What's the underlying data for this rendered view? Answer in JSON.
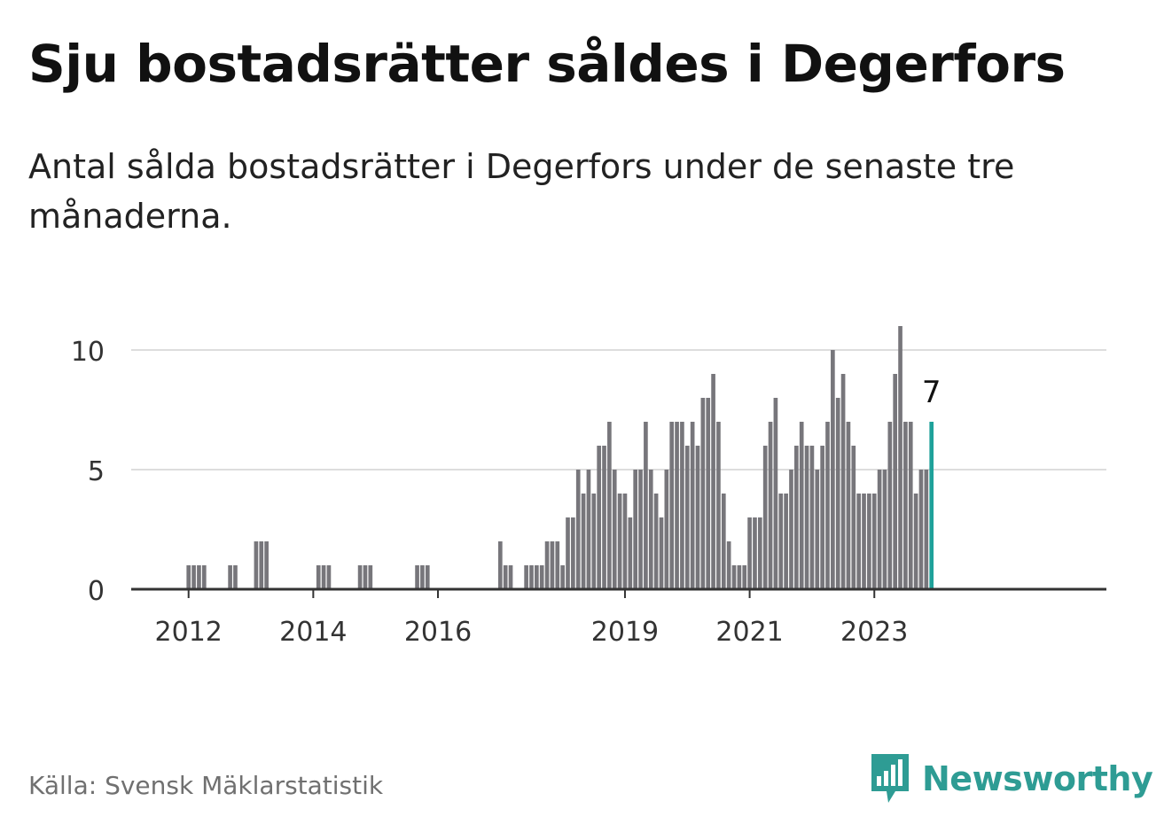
{
  "title": "Sju bostadsrätter såldes i Degerfors",
  "subtitle": "Antal sålda bostadsrätter i Degerfors under de senaste tre månaderna.",
  "source": "Källa: Svensk Mäklarstatistik",
  "brand": "Newsworthy",
  "colors": {
    "bar": "#77767b",
    "highlight": "#1fa19a",
    "grid": "#dddddd",
    "axis": "#333333",
    "brand": "#2e9c94"
  },
  "chart_data": {
    "type": "bar",
    "start": "2011-11",
    "ylim": [
      0,
      11.5
    ],
    "y_ticks": [
      0,
      5,
      10
    ],
    "x_ticks": [
      {
        "label": "2012",
        "date": "2012-01"
      },
      {
        "label": "2014",
        "date": "2014-01"
      },
      {
        "label": "2016",
        "date": "2016-01"
      },
      {
        "label": "2019",
        "date": "2019-01"
      },
      {
        "label": "2021",
        "date": "2021-01"
      },
      {
        "label": "2023",
        "date": "2023-01"
      }
    ],
    "values": [
      0,
      0,
      1,
      1,
      1,
      1,
      0,
      0,
      0,
      0,
      1,
      1,
      0,
      0,
      0,
      2,
      2,
      2,
      0,
      0,
      0,
      0,
      0,
      0,
      0,
      0,
      0,
      1,
      1,
      1,
      0,
      0,
      0,
      0,
      0,
      1,
      1,
      1,
      0,
      0,
      0,
      0,
      0,
      0,
      0,
      0,
      1,
      1,
      1,
      0,
      0,
      0,
      0,
      0,
      0,
      0,
      0,
      0,
      0,
      0,
      0,
      0,
      2,
      1,
      1,
      0,
      0,
      1,
      1,
      1,
      1,
      2,
      2,
      2,
      1,
      3,
      3,
      5,
      4,
      5,
      4,
      6,
      6,
      7,
      5,
      4,
      4,
      3,
      5,
      5,
      7,
      5,
      4,
      3,
      5,
      7,
      7,
      7,
      6,
      7,
      6,
      8,
      8,
      9,
      7,
      4,
      2,
      1,
      1,
      1,
      3,
      3,
      3,
      6,
      7,
      8,
      4,
      4,
      5,
      6,
      7,
      6,
      6,
      5,
      6,
      7,
      10,
      8,
      9,
      7,
      6,
      4,
      4,
      4,
      4,
      5,
      5,
      7,
      9,
      11,
      7,
      7,
      4,
      5,
      5,
      7
    ],
    "highlight_label": "7"
  }
}
